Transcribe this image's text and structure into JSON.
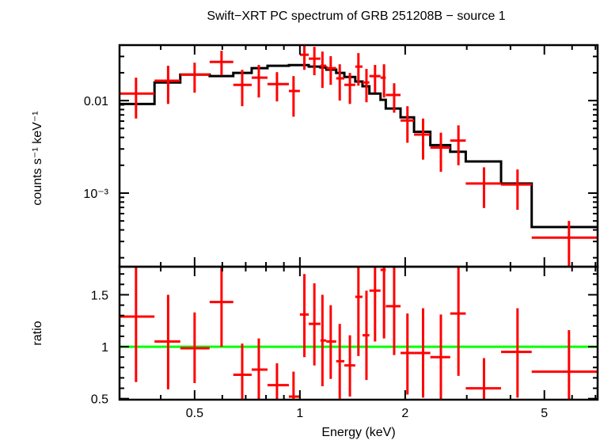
{
  "title": "Swift−XRT PC spectrum of GRB 251208B − source 1",
  "colors": {
    "data": "#ff0000",
    "model": "#000000",
    "unity_line": "#00ff00",
    "axes": "#000000"
  },
  "chart_data": [
    {
      "type": "scatter",
      "panel": "spectrum",
      "ylabel": "counts s⁻¹ keV⁻¹",
      "xscale": "log",
      "yscale": "log",
      "xlim": [
        0.305,
        7.1
      ],
      "ylim": [
        0.00016,
        0.0398
      ],
      "y_tick_labels": [
        {
          "value": 0.01,
          "label": "0.01"
        },
        {
          "value": 0.001,
          "label": "10⁻³"
        }
      ],
      "x_bins": [
        [
          0.305,
          0.384
        ],
        [
          0.384,
          0.455
        ],
        [
          0.455,
          0.552
        ],
        [
          0.552,
          0.645
        ],
        [
          0.645,
          0.728
        ],
        [
          0.728,
          0.808
        ],
        [
          0.808,
          0.93
        ],
        [
          0.93,
          1.0
        ],
        [
          1.0,
          1.06
        ],
        [
          1.06,
          1.145
        ],
        [
          1.145,
          1.19
        ],
        [
          1.19,
          1.27
        ],
        [
          1.27,
          1.34
        ],
        [
          1.34,
          1.44
        ],
        [
          1.44,
          1.51
        ],
        [
          1.51,
          1.58
        ],
        [
          1.58,
          1.7
        ],
        [
          1.7,
          1.76
        ],
        [
          1.76,
          1.94
        ],
        [
          1.94,
          2.12
        ],
        [
          2.12,
          2.36
        ],
        [
          2.36,
          2.69
        ],
        [
          2.69,
          2.98
        ],
        [
          2.98,
          3.76
        ],
        [
          3.76,
          4.6
        ],
        [
          4.6,
          7.15
        ]
      ],
      "x_centers": [
        0.34,
        0.42,
        0.5,
        0.597,
        0.684,
        0.763,
        0.86,
        0.959,
        1.03,
        1.1,
        1.16,
        1.225,
        1.3,
        1.39,
        1.47,
        1.55,
        1.64,
        1.74,
        1.86,
        2.03,
        2.25,
        2.53,
        2.84,
        3.36,
        4.19,
        5.88
      ],
      "series": [
        {
          "role": "data",
          "y": [
            0.0119,
            0.0164,
            0.0191,
            0.0262,
            0.0148,
            0.0177,
            0.0151,
            0.0127,
            0.0313,
            0.0284,
            0.0238,
            0.0224,
            0.0174,
            0.0148,
            0.0233,
            0.0157,
            0.0184,
            0.0177,
            0.0115,
            0.0061,
            0.0043,
            0.0031,
            0.0037,
            0.00127,
            0.00124,
            0.00033
          ],
          "y_err": [
            [
              0.0064,
              0.0177
            ],
            [
              0.0092,
              0.0238
            ],
            [
              0.0122,
              0.0257
            ],
            [
              0.0188,
              0.0345
            ],
            [
              0.0087,
              0.0215
            ],
            [
              0.0108,
              0.0243
            ],
            [
              0.0098,
              0.0203
            ],
            [
              0.0067,
              0.0184
            ],
            [
              0.0215,
              0.0413
            ],
            [
              0.0188,
              0.0381
            ],
            [
              0.0137,
              0.0339
            ],
            [
              0.0148,
              0.0302
            ],
            [
              0.01,
              0.0247
            ],
            [
              0.0092,
              0.0199
            ],
            [
              0.0145,
              0.0326
            ],
            [
              0.0096,
              0.022
            ],
            [
              0.0122,
              0.0243
            ],
            [
              0.0108,
              0.0247
            ],
            [
              0.0074,
              0.0154
            ],
            [
              0.0035,
              0.0087
            ],
            [
              0.0023,
              0.0064
            ],
            [
              0.0017,
              0.0045
            ],
            [
              0.002,
              0.0054
            ],
            [
              0.00069,
              0.0019
            ],
            [
              0.00066,
              0.0018
            ],
            [
              0.0001,
              0.0005
            ]
          ]
        },
        {
          "role": "model",
          "y": [
            0.0092,
            0.0157,
            0.0191,
            0.0184,
            0.0199,
            0.0224,
            0.0238,
            0.0242,
            0.0242,
            0.0233,
            0.0228,
            0.0216,
            0.0199,
            0.018,
            0.0161,
            0.0143,
            0.0119,
            0.0102,
            0.0082,
            0.0066,
            0.0046,
            0.0033,
            0.0028,
            0.0022,
            0.00127,
            0.00043
          ]
        }
      ]
    },
    {
      "type": "scatter",
      "panel": "ratio",
      "ylabel": "ratio",
      "xlabel": "Energy (keV)",
      "xscale": "log",
      "yscale": "linear",
      "xlim": [
        0.305,
        7.1
      ],
      "ylim": [
        0.49,
        1.77
      ],
      "x_tick_labels": [
        {
          "value": 0.5,
          "label": "0.5"
        },
        {
          "value": 1,
          "label": "1"
        },
        {
          "value": 2,
          "label": "2"
        },
        {
          "value": 5,
          "label": "5"
        }
      ],
      "y_tick_labels": [
        {
          "value": 0.5,
          "label": "0.5"
        },
        {
          "value": 1,
          "label": "1"
        },
        {
          "value": 1.5,
          "label": "1.5"
        }
      ],
      "reference_line": 1,
      "y": [
        1.29,
        1.05,
        0.985,
        1.43,
        0.73,
        0.78,
        0.63,
        0.52,
        1.31,
        1.22,
        1.06,
        1.05,
        0.86,
        0.82,
        1.48,
        1.11,
        1.54,
        1.74,
        1.39,
        0.94,
        0.94,
        0.9,
        1.32,
        0.6,
        0.95,
        0.76
      ],
      "y_err": [
        [
          0.66,
          1.9
        ],
        [
          0.59,
          1.5
        ],
        [
          0.65,
          1.33
        ],
        [
          1.0,
          1.9
        ],
        [
          0.4,
          1.03
        ],
        [
          0.4,
          1.08
        ],
        [
          0.4,
          0.84
        ],
        [
          0.4,
          0.76
        ],
        [
          0.9,
          1.7
        ],
        [
          0.82,
          1.61
        ],
        [
          0.62,
          1.5
        ],
        [
          0.69,
          1.4
        ],
        [
          0.5,
          1.22
        ],
        [
          0.52,
          1.11
        ],
        [
          0.91,
          1.9
        ],
        [
          0.68,
          1.54
        ],
        [
          1.05,
          1.9
        ],
        [
          1.08,
          1.9
        ],
        [
          0.92,
          1.9
        ],
        [
          0.54,
          1.32
        ],
        [
          0.51,
          1.37
        ],
        [
          0.4,
          1.31
        ],
        [
          0.72,
          1.9
        ],
        [
          0.4,
          0.89
        ],
        [
          0.51,
          1.37
        ],
        [
          0.4,
          1.16
        ]
      ]
    }
  ]
}
